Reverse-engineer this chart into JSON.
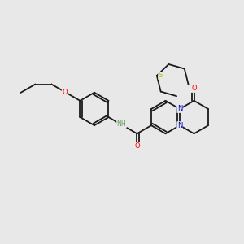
{
  "bg_color": "#e8e8e8",
  "bond_color": "#1a1a1a",
  "atom_colors": {
    "O": "#ff0000",
    "N": "#0000cc",
    "S": "#bbbb00",
    "H": "#6a9f6a",
    "C": "#1a1a1a"
  },
  "figsize": [
    3.0,
    3.0
  ],
  "dpi": 100,
  "lw": 1.3,
  "fontsize": 6.5
}
